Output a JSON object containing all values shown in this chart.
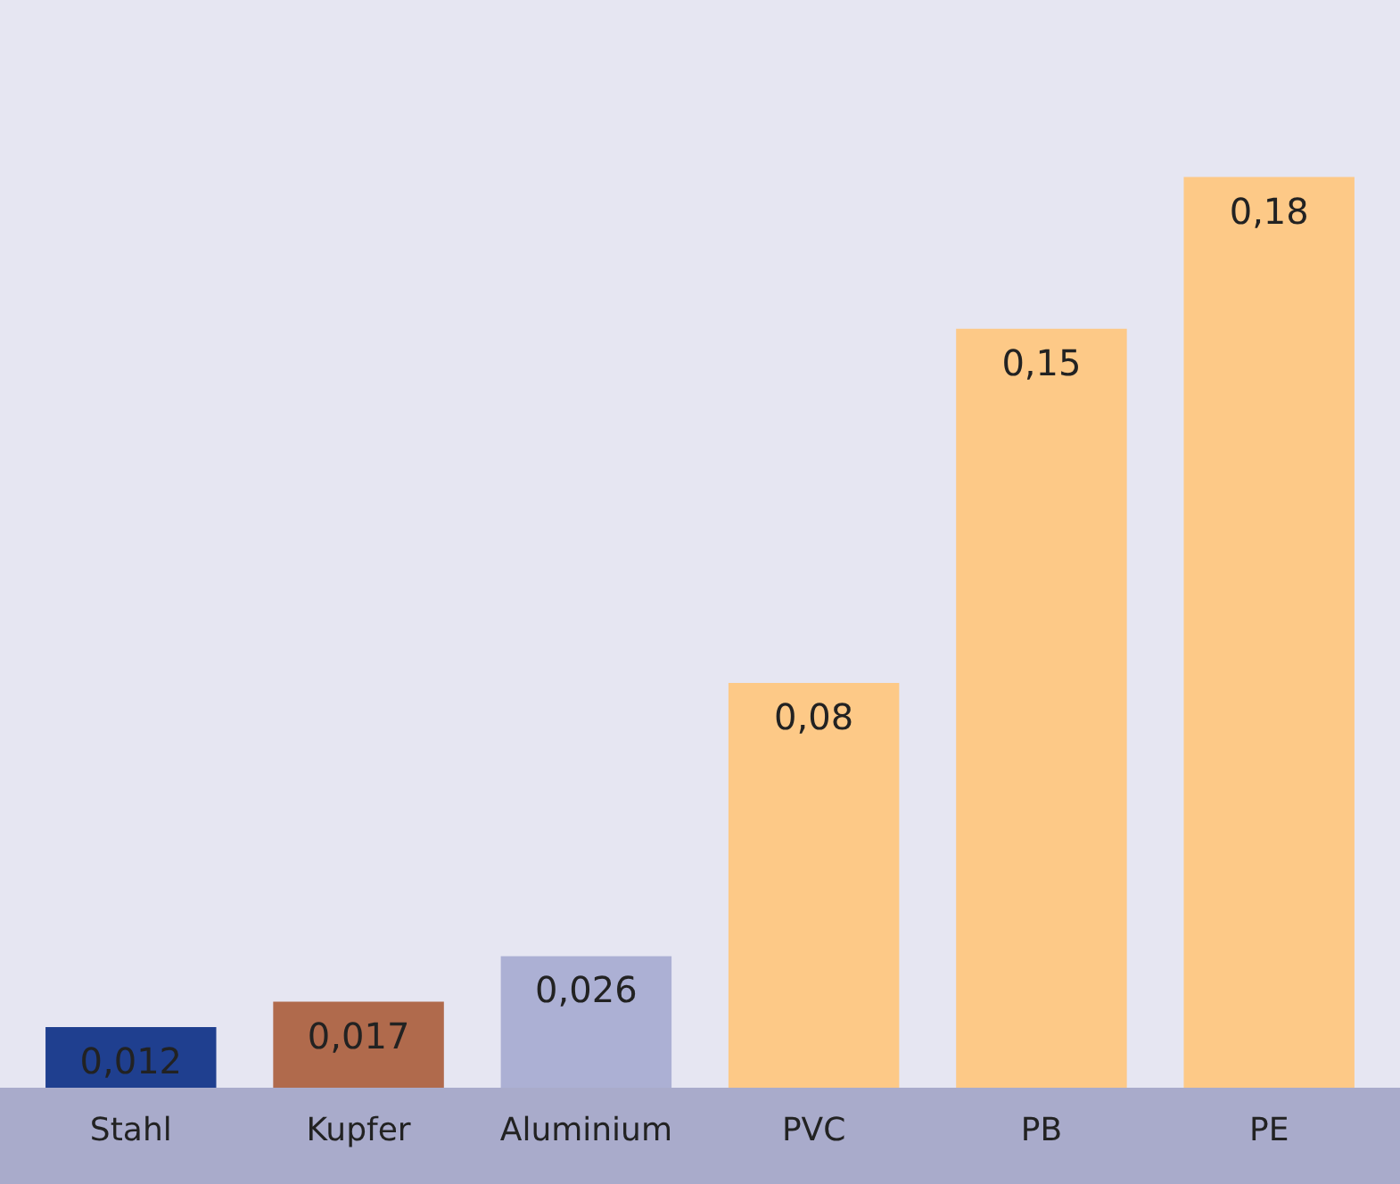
{
  "chart_data": {
    "type": "bar",
    "categories": [
      "Stahl",
      "Kupfer",
      "Aluminium",
      "PVC",
      "PB",
      "PE"
    ],
    "values": [
      0.012,
      0.017,
      0.026,
      0.08,
      0.15,
      0.18
    ],
    "value_labels": [
      "0,012",
      "0,017",
      "0,026",
      "0,08",
      "0,15",
      "0,18"
    ],
    "colors": [
      "#1f3f8f",
      "#b06a4c",
      "#acb0d4",
      "#fdc987",
      "#fdc987",
      "#fdc987"
    ],
    "ylim": [
      0,
      0.215
    ]
  }
}
